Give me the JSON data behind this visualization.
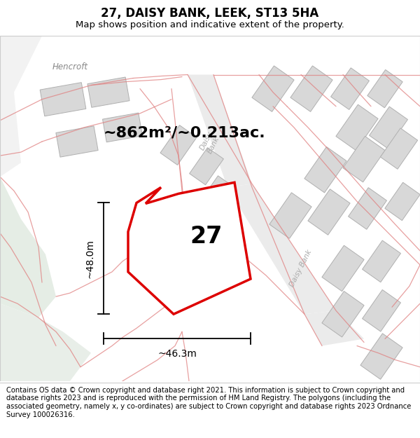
{
  "title": "27, DAISY BANK, LEEK, ST13 5HA",
  "subtitle": "Map shows position and indicative extent of the property.",
  "footer": "Contains OS data © Crown copyright and database right 2021. This information is subject to Crown copyright and database rights 2023 and is reproduced with the permission of HM Land Registry. The polygons (including the associated geometry, namely x, y co-ordinates) are subject to Crown copyright and database rights 2023 Ordnance Survey 100026316.",
  "area_label": "~862m²/~0.213ac.",
  "width_label": "~46.3m",
  "height_label": "~48.0m",
  "number_label": "27",
  "map_bg": "#ffffff",
  "plot_outline_color": "#dd0000",
  "building_fill": "#d8d8d8",
  "building_stroke": "#b0b0b0",
  "green_color": "#e5ede5",
  "road_fill": "#ececec",
  "boundary_color": "#e08080",
  "title_fontsize": 12,
  "subtitle_fontsize": 9.5,
  "footer_fontsize": 7.2,
  "area_fontsize": 16,
  "number_fontsize": 24,
  "dim_fontsize": 10
}
